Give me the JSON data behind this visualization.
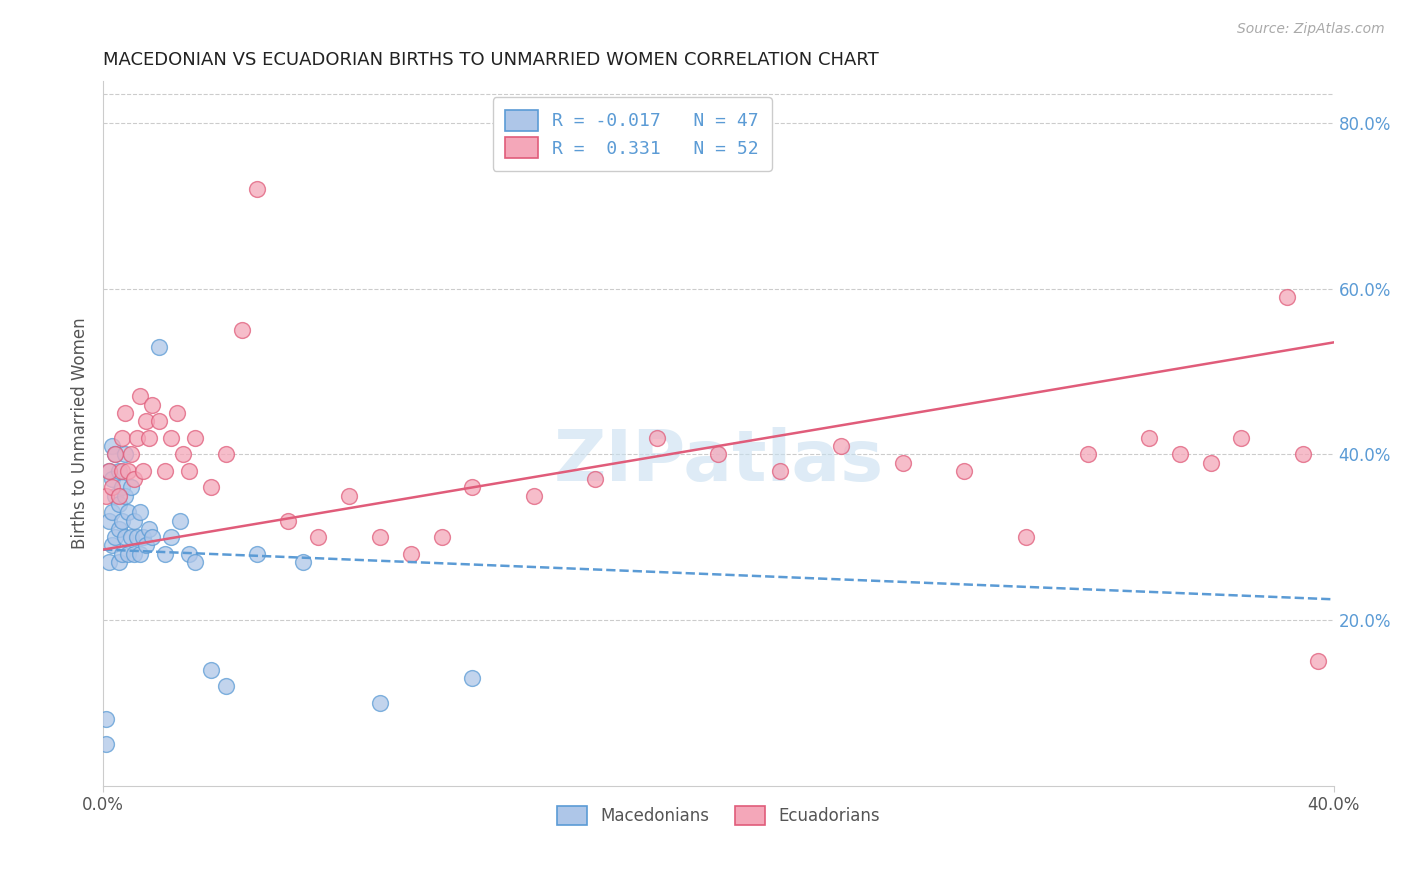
{
  "title": "MACEDONIAN VS ECUADORIAN BIRTHS TO UNMARRIED WOMEN CORRELATION CHART",
  "source": "Source: ZipAtlas.com",
  "ylabel": "Births to Unmarried Women",
  "xlim": [
    0.0,
    0.4
  ],
  "ylim": [
    0.0,
    0.85
  ],
  "right_yticks": [
    0.2,
    0.4,
    0.6,
    0.8
  ],
  "right_yticklabels": [
    "20.0%",
    "40.0%",
    "60.0%",
    "80.0%"
  ],
  "legend_r_blue": "-0.017",
  "legend_n_blue": "47",
  "legend_r_pink": "0.331",
  "legend_n_pink": "52",
  "macedonian_color": "#aec6e8",
  "ecuadorian_color": "#f4a7b9",
  "macedonian_line_color": "#5b9bd5",
  "ecuadorian_line_color": "#e05c7a",
  "watermark": "ZIPatlas",
  "mac_line_x0": 0.0,
  "mac_line_x1": 0.4,
  "mac_line_y0": 0.285,
  "mac_line_y1": 0.225,
  "ecu_line_x0": 0.0,
  "ecu_line_x1": 0.4,
  "ecu_line_y0": 0.285,
  "ecu_line_y1": 0.535,
  "macedonian_x": [
    0.001,
    0.001,
    0.002,
    0.002,
    0.002,
    0.003,
    0.003,
    0.003,
    0.003,
    0.004,
    0.004,
    0.004,
    0.005,
    0.005,
    0.005,
    0.005,
    0.006,
    0.006,
    0.006,
    0.007,
    0.007,
    0.007,
    0.008,
    0.008,
    0.009,
    0.009,
    0.01,
    0.01,
    0.011,
    0.012,
    0.012,
    0.013,
    0.014,
    0.015,
    0.016,
    0.018,
    0.02,
    0.022,
    0.025,
    0.028,
    0.03,
    0.035,
    0.04,
    0.05,
    0.065,
    0.09,
    0.12
  ],
  "macedonian_y": [
    0.08,
    0.05,
    0.27,
    0.32,
    0.38,
    0.29,
    0.33,
    0.37,
    0.41,
    0.3,
    0.35,
    0.4,
    0.27,
    0.31,
    0.34,
    0.38,
    0.28,
    0.32,
    0.36,
    0.3,
    0.35,
    0.4,
    0.28,
    0.33,
    0.3,
    0.36,
    0.28,
    0.32,
    0.3,
    0.28,
    0.33,
    0.3,
    0.29,
    0.31,
    0.3,
    0.53,
    0.28,
    0.3,
    0.32,
    0.28,
    0.27,
    0.14,
    0.12,
    0.28,
    0.27,
    0.1,
    0.13
  ],
  "ecuadorian_x": [
    0.001,
    0.002,
    0.003,
    0.004,
    0.005,
    0.006,
    0.006,
    0.007,
    0.008,
    0.009,
    0.01,
    0.011,
    0.012,
    0.013,
    0.014,
    0.015,
    0.016,
    0.018,
    0.02,
    0.022,
    0.024,
    0.026,
    0.028,
    0.03,
    0.035,
    0.04,
    0.045,
    0.05,
    0.06,
    0.07,
    0.08,
    0.09,
    0.1,
    0.11,
    0.12,
    0.14,
    0.16,
    0.18,
    0.2,
    0.22,
    0.24,
    0.26,
    0.28,
    0.3,
    0.32,
    0.34,
    0.35,
    0.36,
    0.37,
    0.385,
    0.39,
    0.395
  ],
  "ecuadorian_y": [
    0.35,
    0.38,
    0.36,
    0.4,
    0.35,
    0.42,
    0.38,
    0.45,
    0.38,
    0.4,
    0.37,
    0.42,
    0.47,
    0.38,
    0.44,
    0.42,
    0.46,
    0.44,
    0.38,
    0.42,
    0.45,
    0.4,
    0.38,
    0.42,
    0.36,
    0.4,
    0.55,
    0.72,
    0.32,
    0.3,
    0.35,
    0.3,
    0.28,
    0.3,
    0.36,
    0.35,
    0.37,
    0.42,
    0.4,
    0.38,
    0.41,
    0.39,
    0.38,
    0.3,
    0.4,
    0.42,
    0.4,
    0.39,
    0.42,
    0.59,
    0.4,
    0.15
  ]
}
